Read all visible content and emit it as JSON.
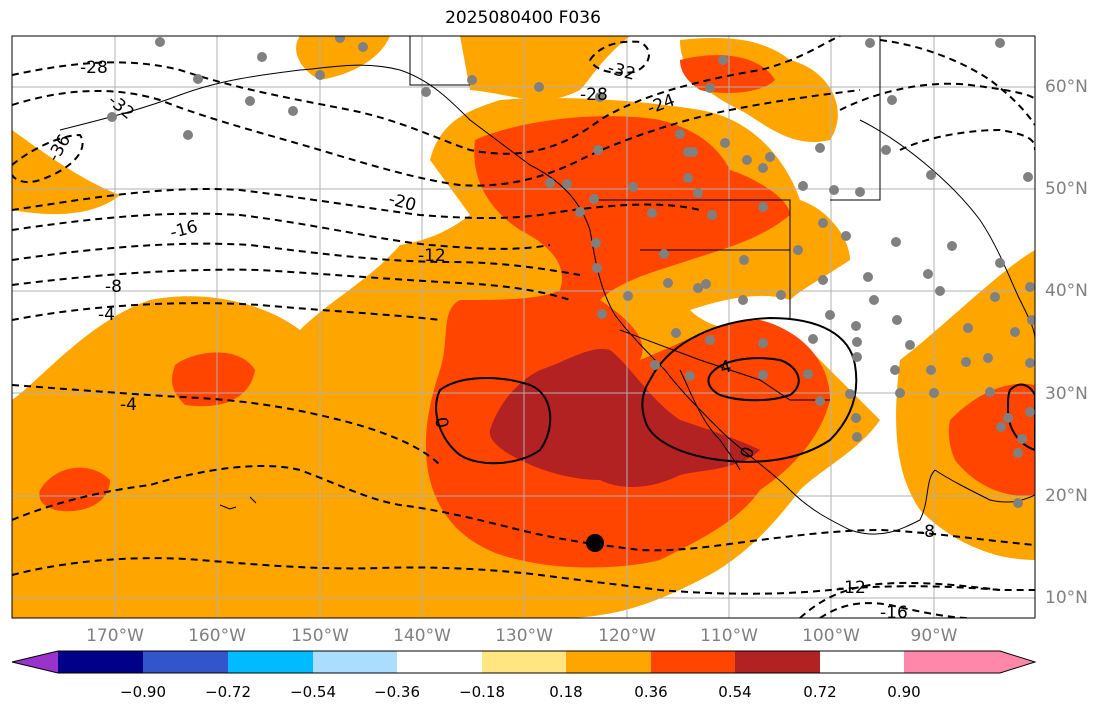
{
  "title": "2025080400 F036",
  "lat_labels": [
    "60°N",
    "50°N",
    "40°N",
    "30°N",
    "20°N",
    "10°N"
  ],
  "lon_labels": [
    "170°W",
    "160°W",
    "150°W",
    "140°W",
    "130°W",
    "120°W",
    "110°W",
    "100°W",
    "90°W"
  ],
  "contour_labels": {
    "dashed": [
      "-36",
      "-32",
      "-28",
      "-32",
      "-28",
      "-24",
      "-20",
      "-16",
      "-12",
      "-8",
      "-4",
      "-4",
      "-8",
      "-12",
      "-16"
    ],
    "solid": [
      "0",
      "0",
      "4"
    ]
  },
  "colorbar": {
    "ticks": [
      "−0.90",
      "−0.72",
      "−0.54",
      "−0.36",
      "−0.18",
      "0.18",
      "0.36",
      "0.54",
      "0.72",
      "0.90"
    ],
    "colors": [
      "#9933cc",
      "#000088",
      "#3355cc",
      "#00bbff",
      "#aaddff",
      "#ffffff",
      "#ffe680",
      "#ffa500",
      "#ff4500",
      "#b22222",
      "#ff88aa"
    ]
  },
  "colors": {
    "shade_low": "#ffa500",
    "shade_mid": "#ff4500",
    "shade_high": "#b22222",
    "station_dot": "#808080",
    "grid": "#b0b0b0"
  }
}
